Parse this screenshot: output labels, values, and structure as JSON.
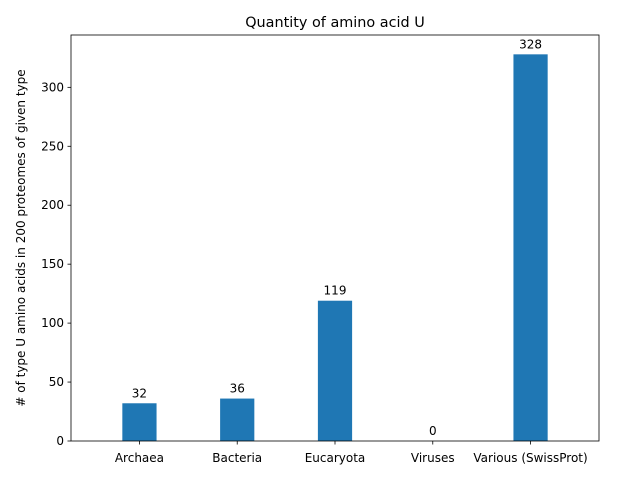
{
  "chart_data": {
    "type": "bar",
    "title": "Quantity of amino acid U",
    "xlabel": "",
    "ylabel": "# of type U amino acids in 200 proteomes of given type",
    "categories": [
      "Archaea",
      "Bacteria",
      "Eucaryota",
      "Viruses",
      "Various (SwissProt)"
    ],
    "values": [
      32,
      36,
      119,
      0,
      328
    ],
    "data_labels": [
      "32",
      "36",
      "119",
      "0",
      "328"
    ],
    "yticks": [
      0,
      50,
      100,
      150,
      200,
      250,
      300
    ],
    "ylim": [
      0,
      344.4
    ],
    "grid": false,
    "legend": "none",
    "bar_color": "#1f77b4"
  }
}
